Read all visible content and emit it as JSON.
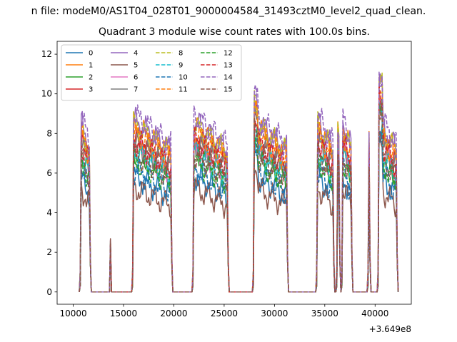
{
  "figure": {
    "suptitle": "n file: modeM0/AS1T04_028T01_9000004584_31493cztM0_level2_quad_clean.",
    "title": "Quadrant 3 module wise count rates with 100.0s bins.",
    "x_offset_text": "+3.649e8"
  },
  "chart_data": {
    "type": "line",
    "title": "Quadrant 3 module wise count rates with 100.0s bins.",
    "xlabel": "",
    "ylabel": "",
    "x_offset": 364900000,
    "xlim": [
      8400,
      43600
    ],
    "ylim": [
      -0.62,
      12.65
    ],
    "x_ticks": [
      10000,
      15000,
      20000,
      25000,
      30000,
      35000,
      40000
    ],
    "y_ticks": [
      0,
      2,
      4,
      6,
      8,
      10,
      12
    ],
    "grid": false,
    "legend": {
      "placement": "top-left",
      "columns": 4
    },
    "active_segments": [
      {
        "start": 10700,
        "end": 11700
      },
      {
        "start": 15900,
        "end": 19800
      },
      {
        "start": 21900,
        "end": 25400
      },
      {
        "start": 27900,
        "end": 31300
      },
      {
        "start": 34200,
        "end": 35900
      },
      {
        "start": 36200,
        "end": 36500
      },
      {
        "start": 36700,
        "end": 37700
      },
      {
        "start": 39300,
        "end": 39500
      },
      {
        "start": 40300,
        "end": 42200
      }
    ],
    "saa_blip": {
      "x": 13700,
      "peak": 2.5
    },
    "series": [
      {
        "name": "0",
        "color": "#1f77b4",
        "dashed": false,
        "level": 5.9
      },
      {
        "name": "1",
        "color": "#ff7f0e",
        "dashed": false,
        "level": 8.4
      },
      {
        "name": "2",
        "color": "#2ca02c",
        "dashed": false,
        "level": 7.1
      },
      {
        "name": "3",
        "color": "#d62728",
        "dashed": false,
        "level": 7.9
      },
      {
        "name": "4",
        "color": "#9467bd",
        "dashed": false,
        "level": 8.7
      },
      {
        "name": "5",
        "color": "#8c564b",
        "dashed": false,
        "level": 5.3
      },
      {
        "name": "6",
        "color": "#e377c2",
        "dashed": false,
        "level": 7.4
      },
      {
        "name": "7",
        "color": "#7f7f7f",
        "dashed": false,
        "level": 7.6
      },
      {
        "name": "8",
        "color": "#bcbd22",
        "dashed": true,
        "level": 8.5
      },
      {
        "name": "9",
        "color": "#17becf",
        "dashed": true,
        "level": 7.2
      },
      {
        "name": "10",
        "color": "#1f77b4",
        "dashed": true,
        "level": 6.2
      },
      {
        "name": "11",
        "color": "#ff7f0e",
        "dashed": true,
        "level": 8.1
      },
      {
        "name": "12",
        "color": "#2ca02c",
        "dashed": true,
        "level": 6.7
      },
      {
        "name": "13",
        "color": "#d62728",
        "dashed": true,
        "level": 7.7
      },
      {
        "name": "14",
        "color": "#9467bd",
        "dashed": true,
        "level": 9.0
      },
      {
        "name": "15",
        "color": "#8c564b",
        "dashed": true,
        "level": 7.0
      }
    ]
  }
}
